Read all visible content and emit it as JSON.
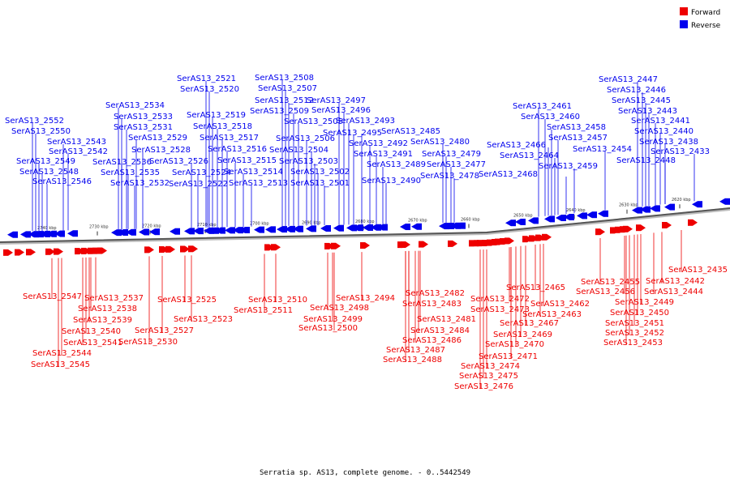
{
  "legend": {
    "forward_label": "Forward",
    "reverse_label": "Reverse",
    "forward_color": "#ee0000",
    "reverse_color": "#0000ee"
  },
  "caption": "Serratia sp. AS13, complete genome. - 0..5442549",
  "scale_ticks": [
    "2740 kbp",
    "2730 kbp",
    "2720 kbp",
    "2710 kbp",
    "2700 kbp",
    "2690 kbp",
    "2680 kbp",
    "2670 kbp",
    "2660 kbp",
    "2650 kbp",
    "2640 kbp",
    "2630 kbp",
    "2620 kbp"
  ],
  "reverse_genes": [
    "SerAS13_2552",
    "SerAS13_2550",
    "SerAS13_2543",
    "SerAS13_2542",
    "SerAS13_2549",
    "SerAS13_2548",
    "SerAS13_2546",
    "SerAS13_2534",
    "SerAS13_2533",
    "SerAS13_2531",
    "SerAS13_2529",
    "SerAS13_2528",
    "SerAS13_2536",
    "SerAS13_2535",
    "SerAS13_2532",
    "SerAS13_2521",
    "SerAS13_2520",
    "SerAS13_2519",
    "SerAS13_2518",
    "SerAS13_2517",
    "SerAS13_2516",
    "SerAS13_2526",
    "SerAS13_2524",
    "SerAS13_2522",
    "SerAS13_2515",
    "SerAS13_2514",
    "SerAS13_2513",
    "SerAS13_2508",
    "SerAS13_2507",
    "SerAS13_2512",
    "SerAS13_2509",
    "SerAS13_2505",
    "SerAS13_2506",
    "SerAS13_2504",
    "SerAS13_2503",
    "SerAS13_2502",
    "SerAS13_2501",
    "SerAS13_2497",
    "SerAS13_2496",
    "SerAS13_2493",
    "SerAS13_2495",
    "SerAS13_2485",
    "SerAS13_2492",
    "SerAS13_2491",
    "SerAS13_2489",
    "SerAS13_2490",
    "SerAS13_2480",
    "SerAS13_2479",
    "SerAS13_2477",
    "SerAS13_2478",
    "SerAS13_2461",
    "SerAS13_2460",
    "SerAS13_2458",
    "SerAS13_2457",
    "SerAS13_2466",
    "SerAS13_2464",
    "SerAS13_2468",
    "SerAS13_2459",
    "SerAS13_2454",
    "SerAS13_2447",
    "SerAS13_2446",
    "SerAS13_2445",
    "SerAS13_2443",
    "SerAS13_2441",
    "SerAS13_2440",
    "SerAS13_2438",
    "SerAS13_2448",
    "SerAS13_2433"
  ],
  "forward_genes": [
    "SerAS13_2547",
    "SerAS13_2537",
    "SerAS13_2538",
    "SerAS13_2539",
    "SerAS13_2540",
    "SerAS13_2541",
    "SerAS13_2544",
    "SerAS13_2545",
    "SerAS13_2525",
    "SerAS13_2523",
    "SerAS13_2527",
    "SerAS13_2530",
    "SerAS13_2510",
    "SerAS13_2511",
    "SerAS13_2498",
    "SerAS13_2499",
    "SerAS13_2500",
    "SerAS13_2494",
    "SerAS13_2482",
    "SerAS13_2483",
    "SerAS13_2481",
    "SerAS13_2484",
    "SerAS13_2486",
    "SerAS13_2487",
    "SerAS13_2488",
    "SerAS13_2465",
    "SerAS13_2472",
    "SerAS13_2473",
    "SerAS13_2462",
    "SerAS13_2463",
    "SerAS13_2467",
    "SerAS13_2469",
    "SerAS13_2470",
    "SerAS13_2471",
    "SerAS13_2474",
    "SerAS13_2475",
    "SerAS13_2476",
    "SerAS13_2455",
    "SerAS13_2456",
    "SerAS13_2442",
    "SerAS13_2444",
    "SerAS13_2449",
    "SerAS13_2450",
    "SerAS13_2451",
    "SerAS13_2452",
    "SerAS13_2453",
    "SerAS13_2435"
  ]
}
